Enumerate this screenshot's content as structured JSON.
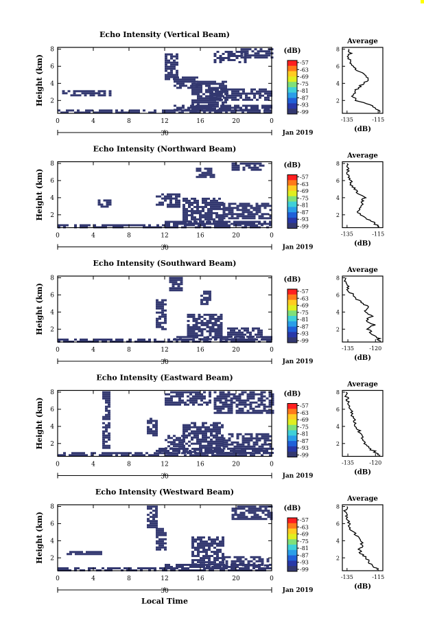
{
  "x_axis_label": "Local Time",
  "chart_data": [
    {
      "type": "heatmap",
      "title": "Echo Intensity (Vertical Beam)",
      "ylabel": "Height (km)",
      "xticks": [
        "0",
        "4",
        "8",
        "12",
        "16",
        "20",
        "0"
      ],
      "date_tick": "30",
      "date_label": "Jan 2019",
      "yticks": [
        "2",
        "4",
        "6",
        "8"
      ],
      "ylim": [
        0.5,
        8.2
      ],
      "xlim": [
        0,
        24
      ],
      "colorbar": {
        "unit": "(dB)",
        "ticks": [
          "-57",
          "-63",
          "-69",
          "-75",
          "-81",
          "-87",
          "-93",
          "-99"
        ],
        "colors": [
          "#ff2020",
          "#ff7a1a",
          "#ffcc22",
          "#e0ee20",
          "#7fe07a",
          "#3fd0d8",
          "#2a9ee8",
          "#2060d8",
          "#2838a8",
          "#333870"
        ]
      },
      "echo_regions": [
        {
          "t0": 0,
          "t1": 24,
          "h0": 0.55,
          "h1": 0.95
        },
        {
          "t0": 0.5,
          "t1": 5.8,
          "h0": 2.5,
          "h1": 3.2
        },
        {
          "t0": 12,
          "t1": 13.5,
          "h0": 4.5,
          "h1": 7.5
        },
        {
          "t0": 13,
          "t1": 16,
          "h0": 3.5,
          "h1": 4.8
        },
        {
          "t0": 15,
          "t1": 18.8,
          "h0": 0.9,
          "h1": 4.3
        },
        {
          "t0": 17.5,
          "t1": 21,
          "h0": 6.5,
          "h1": 7.8
        },
        {
          "t0": 17,
          "t1": 24,
          "h0": 2.0,
          "h1": 3.4
        },
        {
          "t0": 20.5,
          "t1": 24,
          "h0": 7.0,
          "h1": 8.1
        },
        {
          "t0": 13,
          "t1": 24,
          "h0": 0.9,
          "h1": 1.5
        }
      ],
      "average": {
        "title": "Average",
        "xlabel": "(dB)",
        "xticks": [
          "-135",
          "-115"
        ],
        "yticks": [
          "2",
          "4",
          "6",
          "8"
        ],
        "xlim": [
          -138,
          -112
        ],
        "heights": [
          0.6,
          1.0,
          1.5,
          2.0,
          2.5,
          3.0,
          3.5,
          4.0,
          4.5,
          5.0,
          5.5,
          6.0,
          6.5,
          7.0,
          7.5,
          8.0
        ],
        "values": [
          -114,
          -116,
          -120,
          -129,
          -131,
          -130,
          -128,
          -124,
          -121,
          -123,
          -129,
          -131,
          -133,
          -134,
          -133,
          -134
        ]
      }
    },
    {
      "type": "heatmap",
      "title": "Echo Intensity (Northward Beam)",
      "ylabel": "Height (km)",
      "xticks": [
        "0",
        "4",
        "8",
        "12",
        "16",
        "20",
        "0"
      ],
      "date_tick": "30",
      "date_label": "Jan 2019",
      "yticks": [
        "2",
        "4",
        "6",
        "8"
      ],
      "ylim": [
        0.5,
        8.2
      ],
      "xlim": [
        0,
        24
      ],
      "colorbar": {
        "unit": "(dB)",
        "ticks": [
          "-57",
          "-63",
          "-69",
          "-75",
          "-81",
          "-87",
          "-93",
          "-99"
        ],
        "colors": [
          "#ff2020",
          "#ff7a1a",
          "#ffcc22",
          "#e0ee20",
          "#7fe07a",
          "#3fd0d8",
          "#2a9ee8",
          "#2060d8",
          "#2838a8",
          "#333870"
        ]
      },
      "echo_regions": [
        {
          "t0": 0,
          "t1": 24,
          "h0": 0.55,
          "h1": 0.9
        },
        {
          "t0": 4.5,
          "t1": 5.8,
          "h0": 3.0,
          "h1": 3.8
        },
        {
          "t0": 11,
          "t1": 13.5,
          "h0": 3.0,
          "h1": 4.5
        },
        {
          "t0": 14,
          "t1": 18.5,
          "h0": 1.0,
          "h1": 4.0
        },
        {
          "t0": 15.5,
          "t1": 17.5,
          "h0": 6.5,
          "h1": 7.5
        },
        {
          "t0": 18.5,
          "t1": 24,
          "h0": 1.6,
          "h1": 3.4
        },
        {
          "t0": 19.5,
          "t1": 23,
          "h0": 7.2,
          "h1": 8.1
        },
        {
          "t0": 12,
          "t1": 24,
          "h0": 0.9,
          "h1": 1.3
        }
      ],
      "average": {
        "title": "Average",
        "xlabel": "(dB)",
        "xticks": [
          "-135",
          "-115"
        ],
        "yticks": [
          "2",
          "4",
          "6",
          "8"
        ],
        "xlim": [
          -138,
          -112
        ],
        "heights": [
          0.6,
          1.0,
          1.5,
          2.0,
          2.5,
          3.0,
          3.5,
          4.0,
          4.5,
          5.0,
          5.5,
          6.0,
          6.5,
          7.0,
          7.5,
          8.0
        ],
        "values": [
          -115,
          -117,
          -122,
          -127,
          -128,
          -126,
          -125,
          -124,
          -128,
          -130,
          -132,
          -133,
          -134,
          -135,
          -134,
          -135
        ]
      }
    },
    {
      "type": "heatmap",
      "title": "Echo Intensity (Southward Beam)",
      "ylabel": "Height (km)",
      "xticks": [
        "0",
        "4",
        "8",
        "12",
        "16",
        "20",
        "0"
      ],
      "date_tick": "30",
      "date_label": "Jan 2019",
      "yticks": [
        "2",
        "4",
        "6",
        "8"
      ],
      "ylim": [
        0.5,
        8.2
      ],
      "xlim": [
        0,
        24
      ],
      "colorbar": {
        "unit": "(dB)",
        "ticks": [
          "-57",
          "-63",
          "-69",
          "-75",
          "-81",
          "-87",
          "-93",
          "-99"
        ],
        "colors": [
          "#ff2020",
          "#ff7a1a",
          "#ffcc22",
          "#e0ee20",
          "#7fe07a",
          "#3fd0d8",
          "#2a9ee8",
          "#2060d8",
          "#2838a8",
          "#333870"
        ]
      },
      "echo_regions": [
        {
          "t0": 0,
          "t1": 24,
          "h0": 0.55,
          "h1": 0.9
        },
        {
          "t0": 11,
          "t1": 12,
          "h0": 2.0,
          "h1": 5.5
        },
        {
          "t0": 12.5,
          "t1": 14,
          "h0": 6.5,
          "h1": 8.1
        },
        {
          "t0": 14.5,
          "t1": 18.5,
          "h0": 1.0,
          "h1": 3.8
        },
        {
          "t0": 16,
          "t1": 17,
          "h0": 5.0,
          "h1": 6.5
        },
        {
          "t0": 19,
          "t1": 23,
          "h0": 1.0,
          "h1": 2.2
        },
        {
          "t0": 13,
          "t1": 24,
          "h0": 0.9,
          "h1": 1.2
        }
      ],
      "average": {
        "title": "Average",
        "xlabel": "(dB)",
        "xticks": [
          "-135",
          "-120"
        ],
        "yticks": [
          "2",
          "4",
          "6",
          "8"
        ],
        "xlim": [
          -138,
          -116
        ],
        "heights": [
          0.6,
          1.0,
          1.5,
          2.0,
          2.5,
          3.0,
          3.5,
          4.0,
          4.5,
          5.0,
          5.5,
          6.0,
          6.5,
          7.0,
          7.5,
          8.0
        ],
        "values": [
          -117,
          -119,
          -122,
          -124,
          -121,
          -125,
          -122,
          -126,
          -124,
          -127,
          -130,
          -132,
          -135,
          -135,
          -136,
          -136
        ]
      }
    },
    {
      "type": "heatmap",
      "title": "Echo Intensity (Eastward Beam)",
      "ylabel": "Height (km)",
      "xticks": [
        "0",
        "4",
        "8",
        "12",
        "16",
        "20",
        "0"
      ],
      "date_tick": "30",
      "date_label": "Jan 2019",
      "yticks": [
        "2",
        "4",
        "6",
        "8"
      ],
      "ylim": [
        0.5,
        8.2
      ],
      "xlim": [
        0,
        24
      ],
      "colorbar": {
        "unit": "(dB)",
        "ticks": [
          "-57",
          "-63",
          "-69",
          "-75",
          "-81",
          "-87",
          "-93",
          "-99"
        ],
        "colors": [
          "#ff2020",
          "#ff7a1a",
          "#ffcc22",
          "#e0ee20",
          "#7fe07a",
          "#3fd0d8",
          "#2a9ee8",
          "#2060d8",
          "#2838a8",
          "#333870"
        ]
      },
      "echo_regions": [
        {
          "t0": 0,
          "t1": 24,
          "h0": 0.55,
          "h1": 1.0
        },
        {
          "t0": 5,
          "t1": 5.8,
          "h0": 1.5,
          "h1": 8.1
        },
        {
          "t0": 10,
          "t1": 11,
          "h0": 3.0,
          "h1": 5.0
        },
        {
          "t0": 12,
          "t1": 17,
          "h0": 6.5,
          "h1": 8.1
        },
        {
          "t0": 12,
          "t1": 14,
          "h0": 1.5,
          "h1": 3.0
        },
        {
          "t0": 14,
          "t1": 18.5,
          "h0": 1.0,
          "h1": 4.5
        },
        {
          "t0": 17.5,
          "t1": 24,
          "h0": 5.5,
          "h1": 8.1
        },
        {
          "t0": 18.5,
          "t1": 24,
          "h0": 1.3,
          "h1": 3.2
        },
        {
          "t0": 11,
          "t1": 24,
          "h0": 0.9,
          "h1": 1.5
        }
      ],
      "average": {
        "title": "Average",
        "xlabel": "(dB)",
        "xticks": [
          "-135",
          "-120"
        ],
        "yticks": [
          "2",
          "4",
          "6",
          "8"
        ],
        "xlim": [
          -138,
          -116
        ],
        "heights": [
          0.6,
          1.0,
          1.5,
          2.0,
          2.5,
          3.0,
          3.5,
          4.0,
          4.5,
          5.0,
          5.5,
          6.0,
          6.5,
          7.0,
          7.5,
          8.0
        ],
        "values": [
          -117,
          -120,
          -124,
          -126,
          -127,
          -128,
          -129,
          -131,
          -132,
          -132,
          -133,
          -133,
          -135,
          -135,
          -136,
          -136
        ]
      }
    },
    {
      "type": "heatmap",
      "title": "Echo Intensity (Westward Beam)",
      "ylabel": "Height (km)",
      "xticks": [
        "0",
        "4",
        "8",
        "12",
        "16",
        "20",
        "0"
      ],
      "date_tick": "30",
      "date_label": "Jan 2019",
      "yticks": [
        "2",
        "4",
        "6",
        "8"
      ],
      "ylim": [
        0.5,
        8.2
      ],
      "xlim": [
        0,
        24
      ],
      "colorbar": {
        "unit": "(dB)",
        "ticks": [
          "-57",
          "-63",
          "-69",
          "-75",
          "-81",
          "-87",
          "-93",
          "-99"
        ],
        "colors": [
          "#ff2020",
          "#ff7a1a",
          "#ffcc22",
          "#e0ee20",
          "#7fe07a",
          "#3fd0d8",
          "#2a9ee8",
          "#2060d8",
          "#2838a8",
          "#333870"
        ]
      },
      "echo_regions": [
        {
          "t0": 0,
          "t1": 24,
          "h0": 0.55,
          "h1": 0.9
        },
        {
          "t0": 1,
          "t1": 5,
          "h0": 2.4,
          "h1": 2.8
        },
        {
          "t0": 10,
          "t1": 11,
          "h0": 5.5,
          "h1": 8.1
        },
        {
          "t0": 11,
          "t1": 12,
          "h0": 3.0,
          "h1": 5.5
        },
        {
          "t0": 15,
          "t1": 18.5,
          "h0": 1.0,
          "h1": 4.5
        },
        {
          "t0": 19.5,
          "t1": 24,
          "h0": 6.5,
          "h1": 8.1
        },
        {
          "t0": 18.5,
          "t1": 23.5,
          "h0": 1.0,
          "h1": 2.2
        },
        {
          "t0": 12,
          "t1": 24,
          "h0": 0.9,
          "h1": 1.3
        }
      ],
      "average": {
        "title": "Average",
        "xlabel": "(dB)",
        "xticks": [
          "-135",
          "-115"
        ],
        "yticks": [
          "2",
          "4",
          "6",
          "8"
        ],
        "xlim": [
          -138,
          -112
        ],
        "heights": [
          0.6,
          1.0,
          1.5,
          2.0,
          2.5,
          3.0,
          3.5,
          4.0,
          4.5,
          5.0,
          5.5,
          6.0,
          6.5,
          7.0,
          7.5,
          8.0
        ],
        "values": [
          -115,
          -118,
          -121,
          -123,
          -126,
          -127,
          -125,
          -126,
          -128,
          -131,
          -133,
          -134,
          -135,
          -135,
          -136,
          -135
        ]
      }
    }
  ]
}
